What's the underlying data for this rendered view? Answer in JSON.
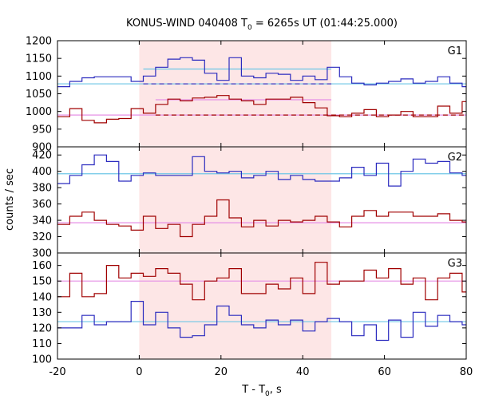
{
  "chart_data": {
    "type": "line",
    "title_parts": [
      "KONUS-WIND 040408 T",
      "0",
      " = 6265s UT (01:44:25.000)"
    ],
    "xlabel_parts": [
      "T - T",
      "0",
      ", s"
    ],
    "ylabel": "counts / sec",
    "xlim": [
      -20,
      80
    ],
    "xticks": [
      -20,
      0,
      20,
      40,
      60,
      80
    ],
    "x_tick_labels": [
      "-20",
      "0",
      "20",
      "40",
      "60",
      "80"
    ],
    "shaded_interval": [
      0,
      47
    ],
    "colors": {
      "blue": "#2b2bbf",
      "red": "#a00000",
      "cyan": "#6ec6e6",
      "pink": "#e58fe5",
      "shade": "#fde6e6"
    },
    "panels": [
      {
        "label": "G1",
        "ylim": [
          900,
          1200
        ],
        "yticks": [
          900,
          950,
          1000,
          1050,
          1100,
          1150,
          1200
        ],
        "y_tick_labels": [
          "900",
          "950",
          "1000",
          "1050",
          "1100",
          "1150",
          "1200"
        ],
        "series": [
          {
            "color": "blue",
            "x": [
              -20,
              -17,
              -14,
              -11,
              -8,
              -5,
              -2,
              1,
              4,
              7,
              10,
              13,
              16,
              19,
              22,
              25,
              28,
              31,
              34,
              37,
              40,
              43,
              46,
              49,
              52,
              55,
              58,
              61,
              64,
              67,
              70,
              73,
              76,
              79
            ],
            "y": [
              1070,
              1085,
              1095,
              1098,
              1098,
              1098,
              1085,
              1100,
              1125,
              1148,
              1152,
              1145,
              1108,
              1088,
              1152,
              1100,
              1095,
              1108,
              1105,
              1088,
              1100,
              1090,
              1125,
              1098,
              1080,
              1075,
              1080,
              1085,
              1092,
              1080,
              1085,
              1098,
              1080,
              1070
            ]
          },
          {
            "color": "red",
            "x": [
              -20,
              -17,
              -14,
              -11,
              -8,
              -5,
              -2,
              1,
              4,
              7,
              10,
              13,
              16,
              19,
              22,
              25,
              28,
              31,
              34,
              37,
              40,
              43,
              46,
              49,
              52,
              55,
              58,
              61,
              64,
              67,
              70,
              73,
              76,
              79
            ],
            "y": [
              985,
              1008,
              975,
              968,
              978,
              980,
              1008,
              995,
              1020,
              1035,
              1030,
              1038,
              1040,
              1045,
              1035,
              1030,
              1020,
              1035,
              1035,
              1040,
              1025,
              1010,
              988,
              985,
              995,
              1005,
              985,
              990,
              1000,
              985,
              985,
              1015,
              995,
              1028
            ]
          }
        ],
        "levels": [
          {
            "color": "cyan",
            "style": "solid",
            "x": [
              -20,
              80
            ],
            "y": 1078
          },
          {
            "color": "cyan",
            "style": "solid",
            "x": [
              1,
              47
            ],
            "y": 1120
          },
          {
            "color": "blue",
            "style": "dashed",
            "x": [
              1,
              47
            ],
            "y": 1078
          },
          {
            "color": "pink",
            "style": "solid",
            "x": [
              -20,
              80
            ],
            "y": 990
          },
          {
            "color": "pink",
            "style": "solid",
            "x": [
              4,
              47
            ],
            "y": 1033
          },
          {
            "color": "red",
            "style": "dashed",
            "x": [
              4,
              80
            ],
            "y": 990
          }
        ]
      },
      {
        "label": "G2",
        "ylim": [
          300,
          430
        ],
        "yticks": [
          300,
          320,
          340,
          360,
          380,
          400,
          420
        ],
        "y_tick_labels": [
          "300",
          "320",
          "340",
          "360",
          "380",
          "400",
          "420"
        ],
        "series": [
          {
            "color": "blue",
            "x": [
              -20,
              -17,
              -14,
              -11,
              -8,
              -5,
              -2,
              1,
              4,
              7,
              10,
              13,
              16,
              19,
              22,
              25,
              28,
              31,
              34,
              37,
              40,
              43,
              46,
              49,
              52,
              55,
              58,
              61,
              64,
              67,
              70,
              73,
              76,
              79
            ],
            "y": [
              385,
              395,
              408,
              420,
              412,
              388,
              395,
              398,
              395,
              395,
              395,
              418,
              400,
              398,
              400,
              392,
              395,
              400,
              390,
              395,
              390,
              388,
              388,
              392,
              405,
              395,
              410,
              382,
              400,
              415,
              410,
              412,
              398,
              395
            ]
          },
          {
            "color": "red",
            "x": [
              -20,
              -17,
              -14,
              -11,
              -8,
              -5,
              -2,
              1,
              4,
              7,
              10,
              13,
              16,
              19,
              22,
              25,
              28,
              31,
              34,
              37,
              40,
              43,
              46,
              49,
              52,
              55,
              58,
              61,
              64,
              67,
              70,
              73,
              76,
              79
            ],
            "y": [
              335,
              345,
              350,
              340,
              335,
              333,
              328,
              345,
              330,
              335,
              320,
              335,
              345,
              365,
              343,
              332,
              340,
              333,
              340,
              338,
              340,
              345,
              338,
              332,
              345,
              352,
              345,
              350,
              350,
              345,
              345,
              348,
              340,
              338
            ]
          }
        ],
        "levels": [
          {
            "color": "cyan",
            "style": "solid",
            "x": [
              -20,
              80
            ],
            "y": 397
          },
          {
            "color": "pink",
            "style": "solid",
            "x": [
              -20,
              80
            ],
            "y": 337
          }
        ]
      },
      {
        "label": "G3",
        "ylim": [
          100,
          168
        ],
        "yticks": [
          100,
          110,
          120,
          130,
          140,
          150,
          160
        ],
        "y_tick_labels": [
          "100",
          "110",
          "120",
          "130",
          "140",
          "150",
          "160"
        ],
        "series": [
          {
            "color": "blue",
            "x": [
              -20,
              -17,
              -14,
              -11,
              -8,
              -5,
              -2,
              1,
              4,
              7,
              10,
              13,
              16,
              19,
              22,
              25,
              28,
              31,
              34,
              37,
              40,
              43,
              46,
              49,
              52,
              55,
              58,
              61,
              64,
              67,
              70,
              73,
              76,
              79
            ],
            "y": [
              120,
              120,
              128,
              122,
              124,
              124,
              137,
              122,
              130,
              120,
              114,
              115,
              122,
              134,
              128,
              122,
              120,
              125,
              122,
              125,
              118,
              124,
              126,
              124,
              115,
              122,
              112,
              125,
              114,
              130,
              121,
              128,
              124,
              122
            ]
          },
          {
            "color": "red",
            "x": [
              -20,
              -17,
              -14,
              -11,
              -8,
              -5,
              -2,
              1,
              4,
              7,
              10,
              13,
              16,
              19,
              22,
              25,
              28,
              31,
              34,
              37,
              40,
              43,
              46,
              49,
              52,
              55,
              58,
              61,
              64,
              67,
              70,
              73,
              76,
              79
            ],
            "y": [
              140,
              155,
              140,
              142,
              160,
              152,
              155,
              153,
              158,
              155,
              148,
              138,
              150,
              152,
              158,
              142,
              142,
              148,
              145,
              152,
              142,
              162,
              148,
              150,
              150,
              157,
              152,
              158,
              148,
              152,
              138,
              152,
              155,
              143
            ]
          }
        ],
        "levels": [
          {
            "color": "cyan",
            "style": "solid",
            "x": [
              -20,
              80
            ],
            "y": 124
          },
          {
            "color": "pink",
            "style": "solid",
            "x": [
              -20,
              80
            ],
            "y": 150
          }
        ]
      }
    ]
  }
}
